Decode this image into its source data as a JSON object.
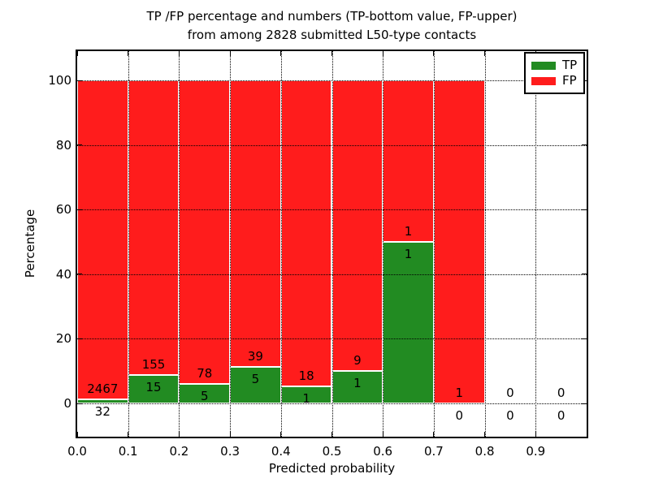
{
  "figure": {
    "title_line1": "TP /FP percentage and numbers (TP-bottom value, FP-upper)",
    "title_line2": "from among 2828 submitted L50-type contacts",
    "xlabel": "Predicted probability",
    "ylabel": "Percentage"
  },
  "chart_data": {
    "type": "bar",
    "subtype": "stacked-percentage-histogram",
    "title": "TP /FP percentage and numbers (TP-bottom value, FP-upper) from among 2828 submitted L50-type contacts",
    "xlabel": "Predicted probability",
    "ylabel": "Percentage",
    "total_submitted_contacts": 2828,
    "xlim": [
      0.0,
      1.0
    ],
    "ylim": [
      -10.3,
      108.8
    ],
    "grid": true,
    "grid_style": "dotted",
    "x_tick_labels": [
      "0.0",
      "0.1",
      "0.2",
      "0.3",
      "0.4",
      "0.5",
      "0.6",
      "0.7",
      "0.8",
      "0.9"
    ],
    "y_ticks": [
      0,
      20,
      40,
      60,
      80,
      100
    ],
    "colors": {
      "tp": "#228b22",
      "fp": "#ff1c1c",
      "bar_edge": "#ffffff",
      "grid": "#000000",
      "frame": "#000000",
      "text": "#000000"
    },
    "legend": {
      "position": "upper-right",
      "entries": [
        {
          "label": "TP",
          "color": "#228b22"
        },
        {
          "label": "FP",
          "color": "#ff1c1c"
        }
      ]
    },
    "series": [
      {
        "name": "TP",
        "values": [
          32,
          15,
          5,
          5,
          1,
          1,
          1,
          0,
          0,
          0
        ]
      },
      {
        "name": "FP",
        "values": [
          2467,
          155,
          78,
          39,
          18,
          9,
          1,
          1,
          0,
          0
        ]
      }
    ],
    "bins": [
      {
        "x_start": 0.0,
        "x_end": 0.1,
        "tp": 32,
        "fp": 2467,
        "tp_pct": 1.28
      },
      {
        "x_start": 0.1,
        "x_end": 0.2,
        "tp": 15,
        "fp": 155,
        "tp_pct": 8.82
      },
      {
        "x_start": 0.2,
        "x_end": 0.3,
        "tp": 5,
        "fp": 78,
        "tp_pct": 6.02
      },
      {
        "x_start": 0.3,
        "x_end": 0.4,
        "tp": 5,
        "fp": 39,
        "tp_pct": 11.36
      },
      {
        "x_start": 0.4,
        "x_end": 0.5,
        "tp": 1,
        "fp": 18,
        "tp_pct": 5.26
      },
      {
        "x_start": 0.5,
        "x_end": 0.6,
        "tp": 1,
        "fp": 9,
        "tp_pct": 10.0
      },
      {
        "x_start": 0.6,
        "x_end": 0.7,
        "tp": 1,
        "fp": 1,
        "tp_pct": 50.0
      },
      {
        "x_start": 0.7,
        "x_end": 0.8,
        "tp": 0,
        "fp": 1,
        "tp_pct": 0.0
      },
      {
        "x_start": 0.8,
        "x_end": 0.9,
        "tp": 0,
        "fp": 0,
        "tp_pct": null
      },
      {
        "x_start": 0.9,
        "x_end": 1.0,
        "tp": 0,
        "fp": 0,
        "tp_pct": null
      }
    ]
  }
}
